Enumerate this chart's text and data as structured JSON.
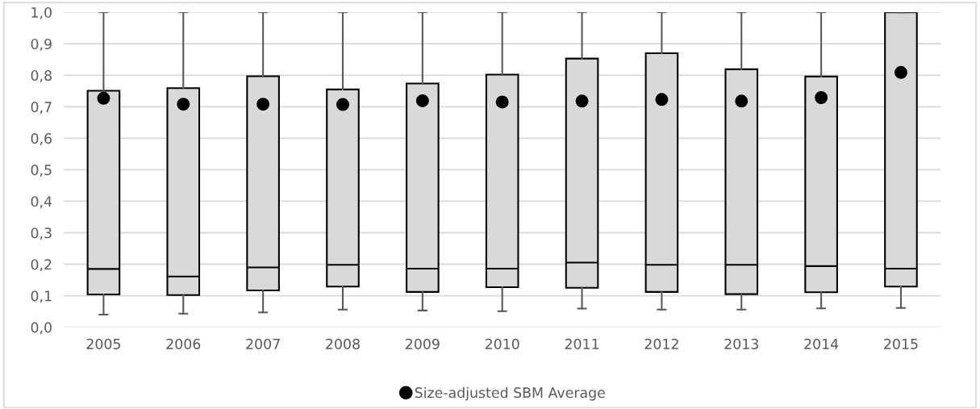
{
  "chart_data": {
    "type": "box",
    "categories": [
      "2005",
      "2006",
      "2007",
      "2008",
      "2009",
      "2010",
      "2011",
      "2012",
      "2013",
      "2014",
      "2015"
    ],
    "boxes": [
      {
        "low": 0.04,
        "q1": 0.104,
        "median": 0.185,
        "q3": 0.751,
        "high": 1.0
      },
      {
        "low": 0.043,
        "q1": 0.102,
        "median": 0.161,
        "q3": 0.759,
        "high": 1.0
      },
      {
        "low": 0.047,
        "q1": 0.117,
        "median": 0.19,
        "q3": 0.797,
        "high": 1.0
      },
      {
        "low": 0.056,
        "q1": 0.129,
        "median": 0.198,
        "q3": 0.755,
        "high": 1.0
      },
      {
        "low": 0.053,
        "q1": 0.112,
        "median": 0.186,
        "q3": 0.774,
        "high": 1.0
      },
      {
        "low": 0.051,
        "q1": 0.127,
        "median": 0.186,
        "q3": 0.802,
        "high": 1.0
      },
      {
        "low": 0.059,
        "q1": 0.125,
        "median": 0.205,
        "q3": 0.853,
        "high": 1.0
      },
      {
        "low": 0.056,
        "q1": 0.112,
        "median": 0.198,
        "q3": 0.87,
        "high": 1.0
      },
      {
        "low": 0.056,
        "q1": 0.105,
        "median": 0.198,
        "q3": 0.819,
        "high": 1.0
      },
      {
        "low": 0.06,
        "q1": 0.111,
        "median": 0.194,
        "q3": 0.796,
        "high": 1.0
      },
      {
        "low": 0.061,
        "q1": 0.129,
        "median": 0.186,
        "q3": 1.0,
        "high": 1.0
      }
    ],
    "color": "#d9d9d9",
    "series": [
      {
        "type": "scatter",
        "name": "Size-adjusted SBM Average",
        "color": "#000000",
        "values": [
          0.727,
          0.708,
          0.708,
          0.707,
          0.719,
          0.715,
          0.718,
          0.723,
          0.718,
          0.729,
          0.809
        ]
      }
    ],
    "ylim": [
      0,
      1.0
    ],
    "yticks": [
      {
        "value": 0,
        "label": "0,0"
      },
      {
        "value": 0.1,
        "label": "0,1"
      },
      {
        "value": 0.2,
        "label": "0,2"
      },
      {
        "value": 0.3,
        "label": "0,3"
      },
      {
        "value": 0.4,
        "label": "0,4"
      },
      {
        "value": 0.5,
        "label": "0,5"
      },
      {
        "value": 0.6,
        "label": "0,6"
      },
      {
        "value": 0.7,
        "label": "0,7"
      },
      {
        "value": 0.8,
        "label": "0,8"
      },
      {
        "value": 0.9,
        "label": "0,9"
      },
      {
        "value": 1.0,
        "label": "1,0"
      }
    ],
    "grid": "y",
    "legend": "bottom",
    "marker": "circle"
  }
}
